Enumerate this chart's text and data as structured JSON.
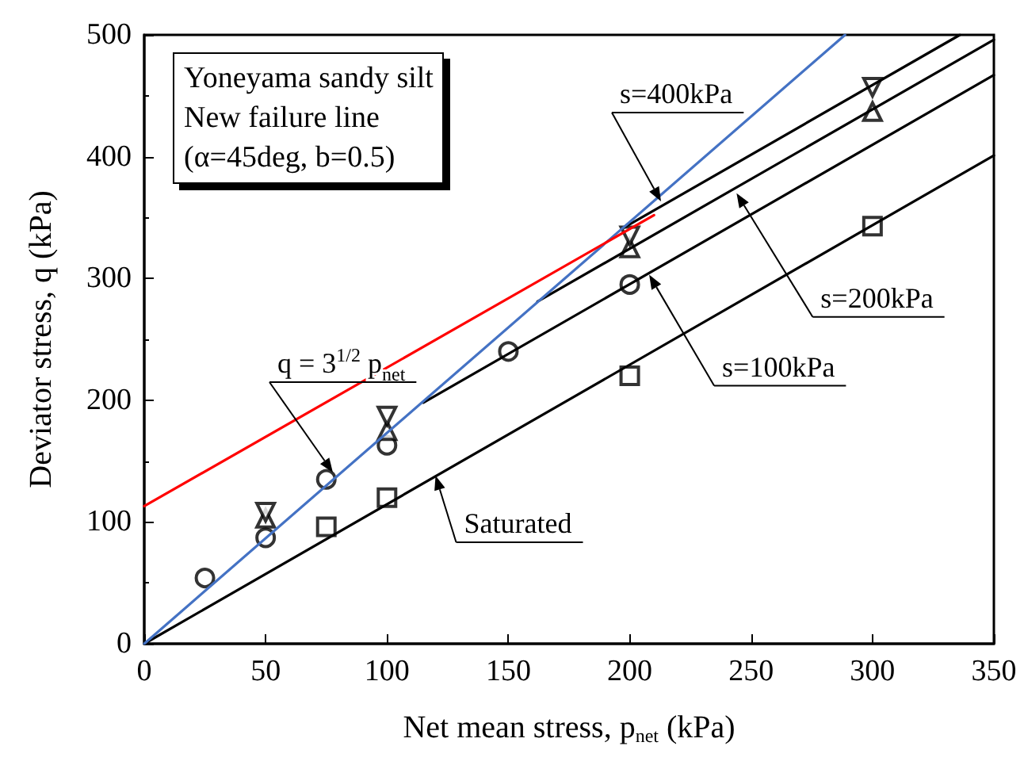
{
  "chart_data": {
    "type": "line",
    "xlabel": "Net mean stress, p$_{net}$ (kPa)",
    "ylabel": "Deviator stress, q (kPa)",
    "xlim": [
      0,
      350
    ],
    "ylim": [
      0,
      500
    ],
    "xticks": [
      0,
      50,
      100,
      150,
      200,
      250,
      300,
      350
    ],
    "yticks": [
      0,
      100,
      200,
      300,
      400,
      500
    ],
    "grid": false,
    "marker": "none",
    "line_style": "solid",
    "series": [
      {
        "color": "#000000",
        "x": [
          0,
          350
        ],
        "values": [
          0,
          401
        ]
      },
      {
        "color": "#000000",
        "x": [
          115,
          350
        ],
        "values": [
          198,
          467
        ]
      },
      {
        "color": "#000000",
        "x": [
          162,
          350
        ],
        "values": [
          281,
          496
        ]
      },
      {
        "color": "#000000",
        "x": [
          197,
          336
        ],
        "values": [
          341,
          500
        ]
      },
      {
        "color": "#4472c4",
        "x": [
          0,
          288.7
        ],
        "values": [
          0,
          500
        ]
      },
      {
        "color": "#ff0000",
        "x": [
          0,
          210
        ],
        "values": [
          113,
          352
        ]
      },
      {
        "type": "scatter",
        "marker": "circle",
        "color": "#000000",
        "x": [
          25,
          50,
          75,
          100,
          150,
          200
        ],
        "values": [
          54,
          87,
          135,
          163,
          240,
          295
        ]
      },
      {
        "type": "scatter",
        "marker": "square",
        "color": "#000000",
        "x": [
          75,
          100,
          200,
          300
        ],
        "values": [
          96,
          120,
          220,
          343
        ]
      },
      {
        "type": "scatter",
        "marker": "triangle",
        "color": "#000000",
        "x": [
          50,
          100,
          200,
          300
        ],
        "values": [
          103,
          175,
          325,
          437
        ]
      },
      {
        "type": "scatter",
        "marker": "triangle-down",
        "color": "#000000",
        "x": [
          50,
          100,
          200,
          300
        ],
        "values": [
          108,
          187,
          335,
          457
        ]
      }
    ],
    "annotations": [
      "Yoneyama sandy silt",
      "New failure line",
      "(α=45deg, b=0.5)",
      {
        "text": "Saturated",
        "x": 120,
        "y": 138
      },
      {
        "text": "s=100kPa",
        "x": 208,
        "y": 303
      },
      {
        "text": "s=200kPa",
        "x": 244,
        "y": 370
      },
      "s=400kPa",
      "q = 3$^{1/2}$ p$_{net}$"
    ]
  }
}
